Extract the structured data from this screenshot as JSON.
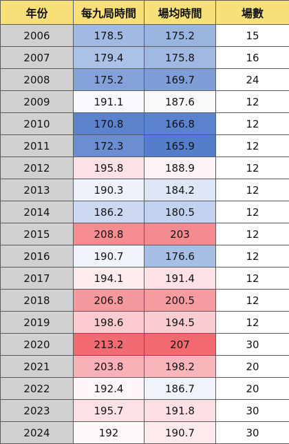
{
  "headers": {
    "year": "年份",
    "avg_per_9_innings": "每九局時間",
    "avg_per_game": "場均時間",
    "games": "場數"
  },
  "rows": [
    {
      "year": "2006",
      "avg9": "178.5",
      "avgg": "175.2",
      "games": "15",
      "avg9_color": "#a2bae3",
      "avgg_color": "#9ab4e0"
    },
    {
      "year": "2007",
      "avg9": "179.4",
      "avgg": "175.8",
      "games": "16",
      "avg9_color": "#abc1e6",
      "avgg_color": "#a0b8e2"
    },
    {
      "year": "2008",
      "avg9": "175.2",
      "avgg": "169.7",
      "games": "24",
      "avg9_color": "#84a2d9",
      "avgg_color": "#7f9ed7"
    },
    {
      "year": "2009",
      "avg9": "191.1",
      "avgg": "187.6",
      "games": "12",
      "avg9_color": "#f8fafd",
      "avgg_color": "#f8f8fb"
    },
    {
      "year": "2010",
      "avg9": "170.8",
      "avgg": "166.8",
      "games": "12",
      "avg9_color": "#5b83cc",
      "avgg_color": "#5b82cc"
    },
    {
      "year": "2011",
      "avg9": "172.3",
      "avgg": "165.9",
      "games": "12",
      "avg9_color": "#6a8ed0",
      "avgg_color": "#547dca"
    },
    {
      "year": "2012",
      "avg9": "195.8",
      "avgg": "188.9",
      "games": "12",
      "avg9_color": "#fde2e5",
      "avgg_color": "#fdf3f4"
    },
    {
      "year": "2013",
      "avg9": "190.3",
      "avgg": "184.2",
      "games": "12",
      "avg9_color": "#eef2fa",
      "avgg_color": "#dde6f5"
    },
    {
      "year": "2014",
      "avg9": "186.2",
      "avgg": "180.5",
      "games": "12",
      "avg9_color": "#ccd9f0",
      "avgg_color": "#c2d1ee"
    },
    {
      "year": "2015",
      "avg9": "208.8",
      "avgg": "203",
      "games": "12",
      "avg9_color": "#f48c92",
      "avgg_color": "#f38a90"
    },
    {
      "year": "2016",
      "avg9": "190.7",
      "avgg": "176.6",
      "games": "12",
      "avg9_color": "#f1f4fb",
      "avgg_color": "#a8bfe5"
    },
    {
      "year": "2017",
      "avg9": "194.1",
      "avgg": "191.4",
      "games": "12",
      "avg9_color": "#feecee",
      "avgg_color": "#fde2e5"
    },
    {
      "year": "2018",
      "avg9": "206.8",
      "avgg": "200.5",
      "games": "12",
      "avg9_color": "#f5999e",
      "avgg_color": "#f59ca1"
    },
    {
      "year": "2019",
      "avg9": "198.6",
      "avgg": "194.5",
      "games": "12",
      "avg9_color": "#fbcbcf",
      "avgg_color": "#fbcdd0"
    },
    {
      "year": "2020",
      "avg9": "213.2",
      "avgg": "207",
      "games": "30",
      "avg9_color": "#f26a72",
      "avgg_color": "#f26970"
    },
    {
      "year": "2021",
      "avg9": "203.8",
      "avgg": "198.2",
      "games": "20",
      "avg9_color": "#f8b2b7",
      "avgg_color": "#f9b6ba"
    },
    {
      "year": "2022",
      "avg9": "192.4",
      "avgg": "186.7",
      "games": "20",
      "avg9_color": "#fef6f7",
      "avgg_color": "#f0f3fa"
    },
    {
      "year": "2023",
      "avg9": "195.7",
      "avgg": "191.8",
      "games": "30",
      "avg9_color": "#fde2e5",
      "avgg_color": "#fde0e3"
    },
    {
      "year": "2024",
      "avg9": "192",
      "avgg": "190.7",
      "games": "30",
      "avg9_color": "#fef8f9",
      "avgg_color": "#feeaec"
    }
  ]
}
